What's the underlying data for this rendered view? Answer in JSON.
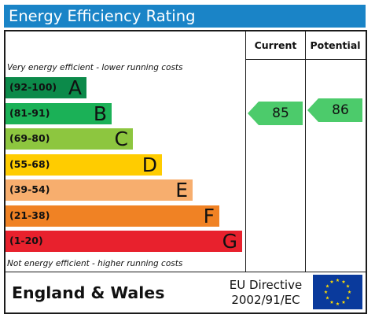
{
  "title": "Energy Efficiency Rating",
  "columns": {
    "current": "Current",
    "potential": "Potential"
  },
  "top_note": "Very energy efficient - lower running costs",
  "bottom_note": "Not energy efficient - higher running costs",
  "footer": {
    "region": "England & Wales",
    "directive_line1": "EU Directive",
    "directive_line2": "2002/91/EC",
    "flag_icon": "eu-flag-icon"
  },
  "chart_data": {
    "type": "bar",
    "title": "Energy Efficiency Rating",
    "categories": [
      "A",
      "B",
      "C",
      "D",
      "E",
      "F",
      "G"
    ],
    "ranges": [
      "(92-100)",
      "(81-91)",
      "(69-80)",
      "(55-68)",
      "(39-54)",
      "(21-38)",
      "(1-20)"
    ],
    "colors": [
      "#0c8a4a",
      "#1bb157",
      "#8dc63f",
      "#ffcc00",
      "#f7ae6e",
      "#f08224",
      "#e8212d"
    ],
    "series": [
      {
        "name": "Current",
        "value": 85,
        "band": "B",
        "color": "#4ccb6b"
      },
      {
        "name": "Potential",
        "value": 86,
        "band": "B",
        "color": "#4ccb6b"
      }
    ]
  }
}
